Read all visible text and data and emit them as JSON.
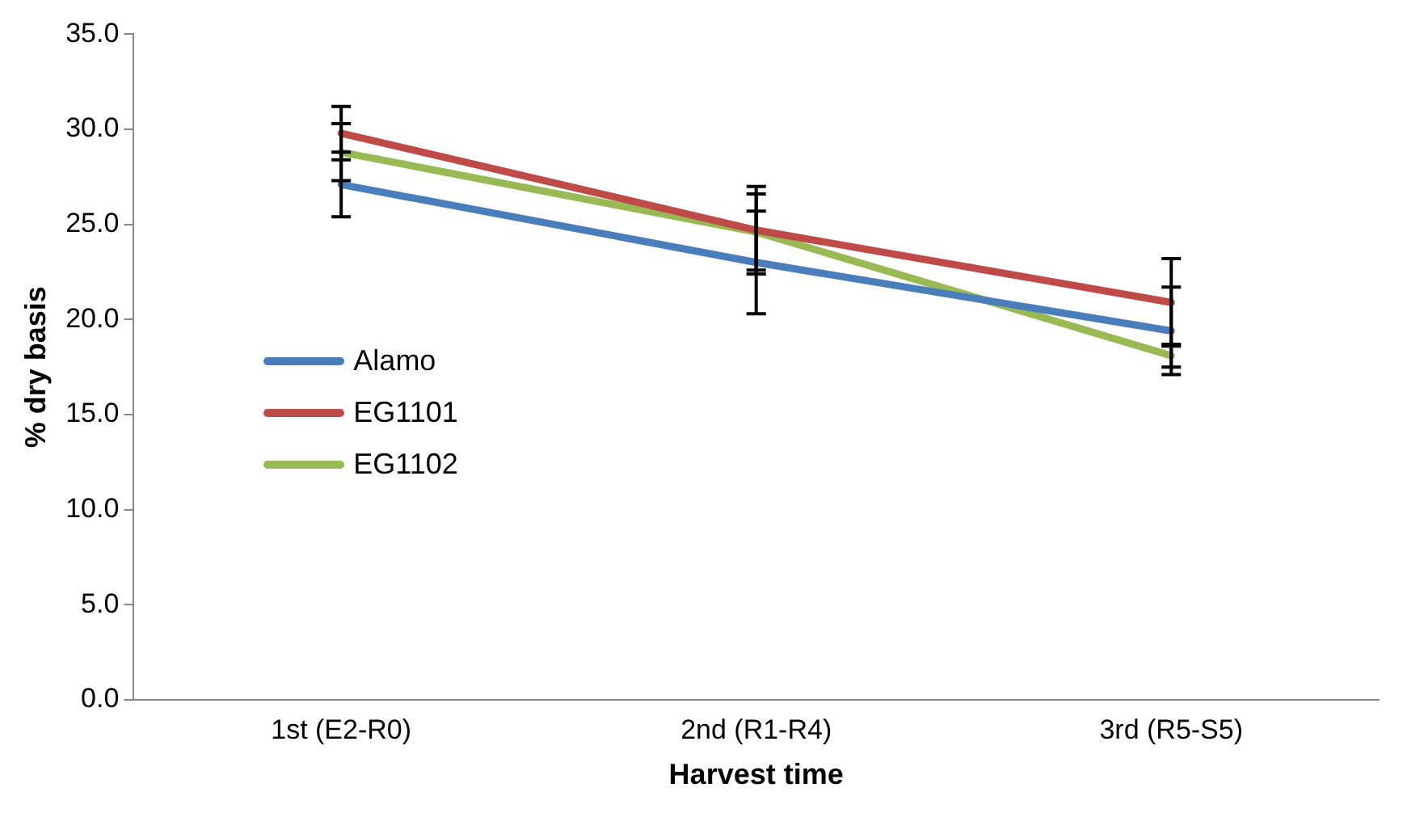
{
  "chart_data": {
    "type": "line",
    "xlabel": "Harvest time",
    "ylabel": "% dry basis",
    "categories": [
      "1st (E2-R0)",
      "2nd (R1-R4)",
      "3rd (R5-S5)"
    ],
    "series": [
      {
        "name": "Alamo",
        "color": "#4a7ebb",
        "values": [
          27.1,
          23.0,
          19.4
        ],
        "errors": [
          1.7,
          2.7,
          2.3
        ]
      },
      {
        "name": "EG1101",
        "color": "#be4b48",
        "values": [
          29.8,
          24.7,
          20.9
        ],
        "errors": [
          1.4,
          2.3,
          2.3
        ]
      },
      {
        "name": "EG1102",
        "color": "#98b954",
        "values": [
          28.8,
          24.6,
          18.1
        ],
        "errors": [
          1.5,
          2.0,
          0.6
        ]
      }
    ],
    "ylim": [
      0,
      35
    ],
    "yticks": [
      {
        "value": 0,
        "label": "0.0"
      },
      {
        "value": 5,
        "label": "5.0"
      },
      {
        "value": 10,
        "label": "10.0"
      },
      {
        "value": 15,
        "label": "15.0"
      },
      {
        "value": 20,
        "label": "20.0"
      },
      {
        "value": 25,
        "label": "25.0"
      },
      {
        "value": 30,
        "label": "30.0"
      },
      {
        "value": 35,
        "label": "35.0"
      }
    ],
    "grid": false,
    "legend": "left",
    "marker": "none",
    "line_style": "solid"
  }
}
